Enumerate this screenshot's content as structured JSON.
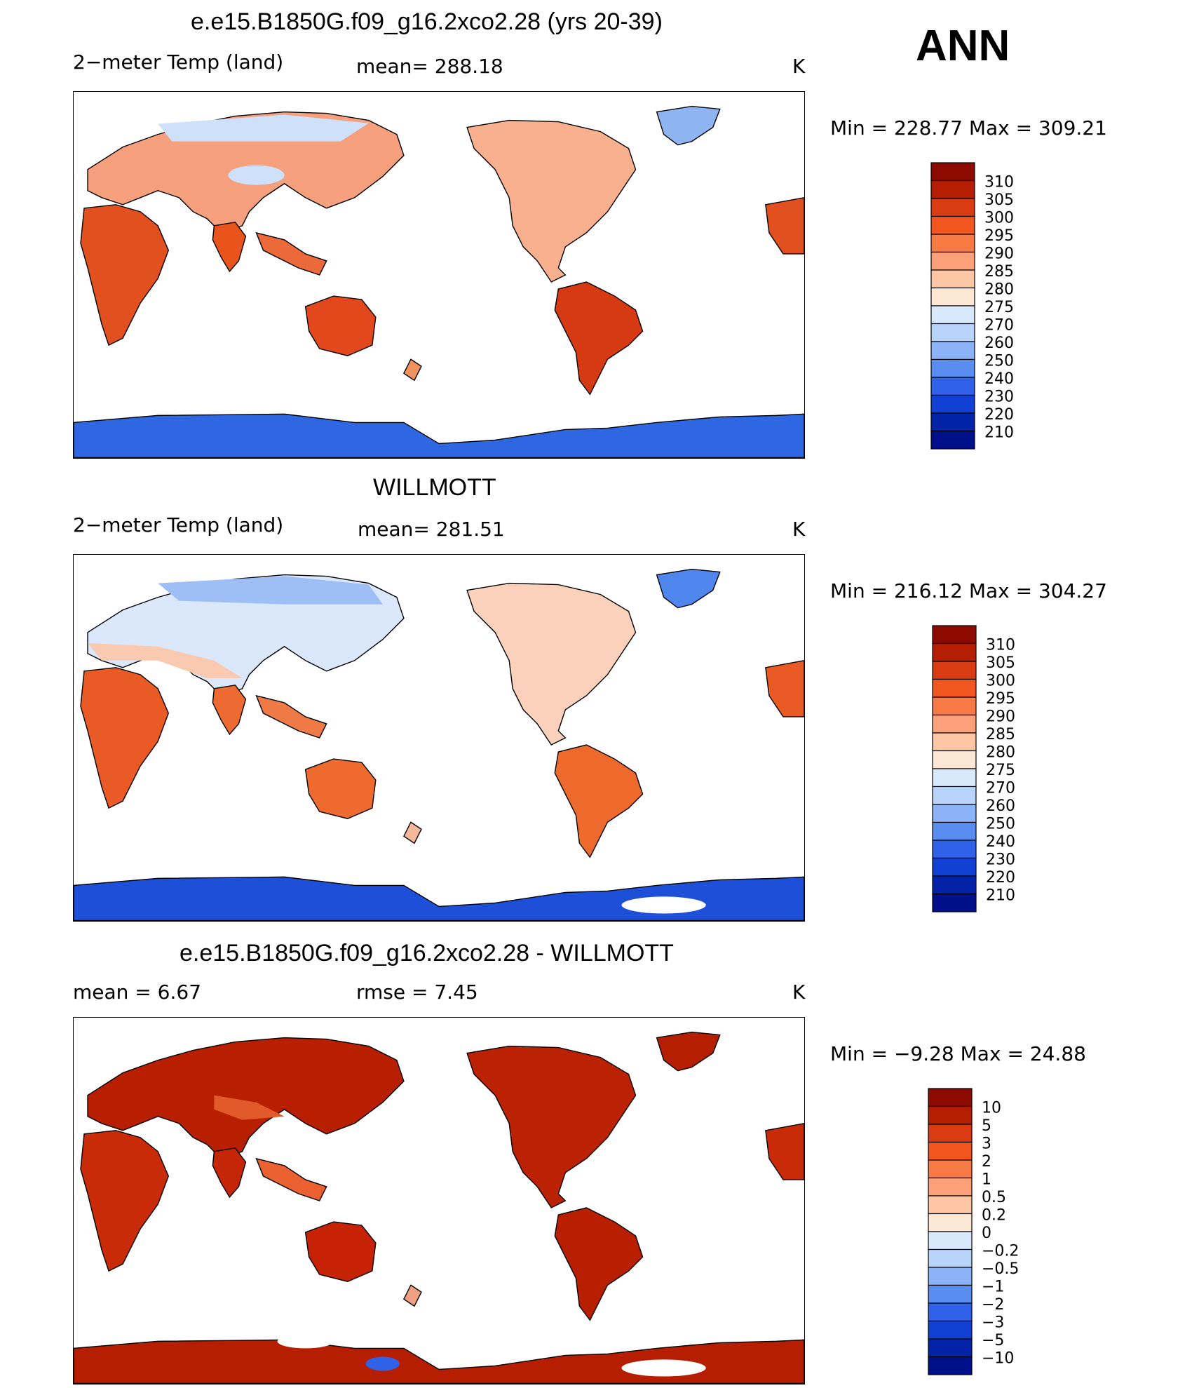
{
  "season": "ANN",
  "panels": [
    {
      "title": "e.e15.B1850G.f09_g16.2xco2.28 (yrs 20-39)",
      "left_label": "2−meter Temp (land)",
      "mid_label": "mean=  288.18",
      "unit": "K",
      "minmax": "Min  =  228.77  Max  =  309.21",
      "colorbar": {
        "labels": [
          "310",
          "305",
          "300",
          "295",
          "290",
          "285",
          "280",
          "275",
          "270",
          "260",
          "250",
          "240",
          "230",
          "220",
          "210"
        ],
        "colors": [
          "#8c0a00",
          "#b51e00",
          "#d93c12",
          "#f0561e",
          "#f77a45",
          "#fba078",
          "#fdc7a6",
          "#fde8d6",
          "#d8e9fb",
          "#b9d4fa",
          "#8cb3f7",
          "#5a8df0",
          "#2f62e8",
          "#1040d4",
          "#0222a8",
          "#00108a"
        ]
      },
      "map_scheme": "model"
    },
    {
      "title": "WILLMOTT",
      "left_label": "2−meter Temp (land)",
      "mid_label": "mean=  281.51",
      "unit": "K",
      "minmax": "Min  =  216.12  Max  =  304.27",
      "colorbar": {
        "labels": [
          "310",
          "305",
          "300",
          "295",
          "290",
          "285",
          "280",
          "275",
          "270",
          "260",
          "250",
          "240",
          "230",
          "220",
          "210"
        ],
        "colors": [
          "#8c0a00",
          "#b51e00",
          "#d93c12",
          "#f0561e",
          "#f77a45",
          "#fba078",
          "#fdc7a6",
          "#fde8d6",
          "#d8e9fb",
          "#b9d4fa",
          "#8cb3f7",
          "#5a8df0",
          "#2f62e8",
          "#1040d4",
          "#0222a8",
          "#00108a"
        ]
      },
      "map_scheme": "obs"
    },
    {
      "title": "e.e15.B1850G.f09_g16.2xco2.28 - WILLMOTT",
      "left_label": "mean  =      6.67",
      "mid_label": "rmse  =      7.45",
      "unit": "K",
      "minmax": "Min  =    −9.28  Max  =    24.88",
      "colorbar": {
        "labels": [
          "10",
          "5",
          "3",
          "2",
          "1",
          "0.5",
          "0.2",
          "0",
          "−0.2",
          "−0.5",
          "−1",
          "−2",
          "−3",
          "−5",
          "−10"
        ],
        "colors": [
          "#8c0a00",
          "#b51e00",
          "#d93c12",
          "#f0561e",
          "#f77a45",
          "#fba078",
          "#fdc7a6",
          "#fde8d6",
          "#d8e9fb",
          "#b9d4fa",
          "#8cb3f7",
          "#5a8df0",
          "#2f62e8",
          "#1040d4",
          "#0222a8",
          "#00108a"
        ]
      },
      "map_scheme": "diff"
    }
  ],
  "chart_data": {
    "type": "heatmap",
    "title": "ANN",
    "variable": "2-meter Temp (land)",
    "units": "K",
    "maps": [
      {
        "name": "e.e15.B1850G.f09_g16.2xco2.28 (yrs 20-39)",
        "mean": 288.18,
        "min": 228.77,
        "max": 309.21,
        "levels": [
          210,
          220,
          230,
          240,
          250,
          260,
          270,
          275,
          280,
          285,
          290,
          295,
          300,
          305,
          310
        ]
      },
      {
        "name": "WILLMOTT",
        "mean": 281.51,
        "min": 216.12,
        "max": 304.27,
        "levels": [
          210,
          220,
          230,
          240,
          250,
          260,
          270,
          275,
          280,
          285,
          290,
          295,
          300,
          305,
          310
        ]
      },
      {
        "name": "e.e15.B1850G.f09_g16.2xco2.28 - WILLMOTT",
        "mean": 6.67,
        "rmse": 7.45,
        "min": -9.28,
        "max": 24.88,
        "levels": [
          -10,
          -5,
          -3,
          -2,
          -1,
          -0.5,
          -0.2,
          0,
          0.2,
          0.5,
          1,
          2,
          3,
          5,
          10
        ]
      }
    ]
  }
}
